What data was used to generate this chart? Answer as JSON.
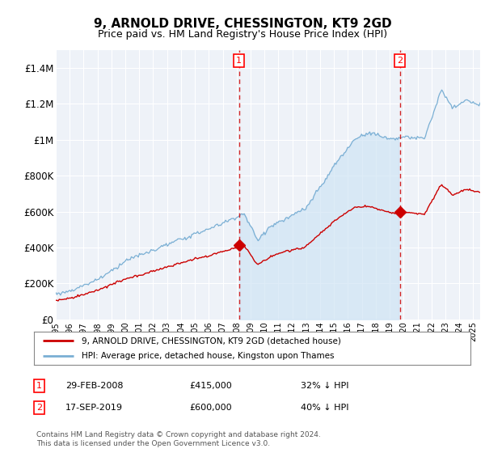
{
  "title": "9, ARNOLD DRIVE, CHESSINGTON, KT9 2GD",
  "subtitle": "Price paid vs. HM Land Registry's House Price Index (HPI)",
  "ylim": [
    0,
    1500000
  ],
  "yticks": [
    0,
    200000,
    400000,
    600000,
    800000,
    1000000,
    1200000,
    1400000
  ],
  "ytick_labels": [
    "£0",
    "£200K",
    "£400K",
    "£600K",
    "£800K",
    "£1M",
    "£1.2M",
    "£1.4M"
  ],
  "background_color": "#ffffff",
  "plot_background": "#eef2f8",
  "grid_color": "#ffffff",
  "hpi_color": "#7aafd4",
  "price_color": "#cc0000",
  "fill_color": "#d0e4f5",
  "sale1_price": 415000,
  "sale1_label": "32% ↓ HPI",
  "sale1_date": "29-FEB-2008",
  "sale2_price": 600000,
  "sale2_label": "40% ↓ HPI",
  "sale2_date": "17-SEP-2019",
  "legend_property": "9, ARNOLD DRIVE, CHESSINGTON, KT9 2GD (detached house)",
  "legend_hpi": "HPI: Average price, detached house, Kingston upon Thames",
  "footer": "Contains HM Land Registry data © Crown copyright and database right 2024.\nThis data is licensed under the Open Government Licence v3.0.",
  "sale1_x": 2008.17,
  "sale2_x": 2019.72,
  "xmin": 1995.0,
  "xmax": 2025.5
}
